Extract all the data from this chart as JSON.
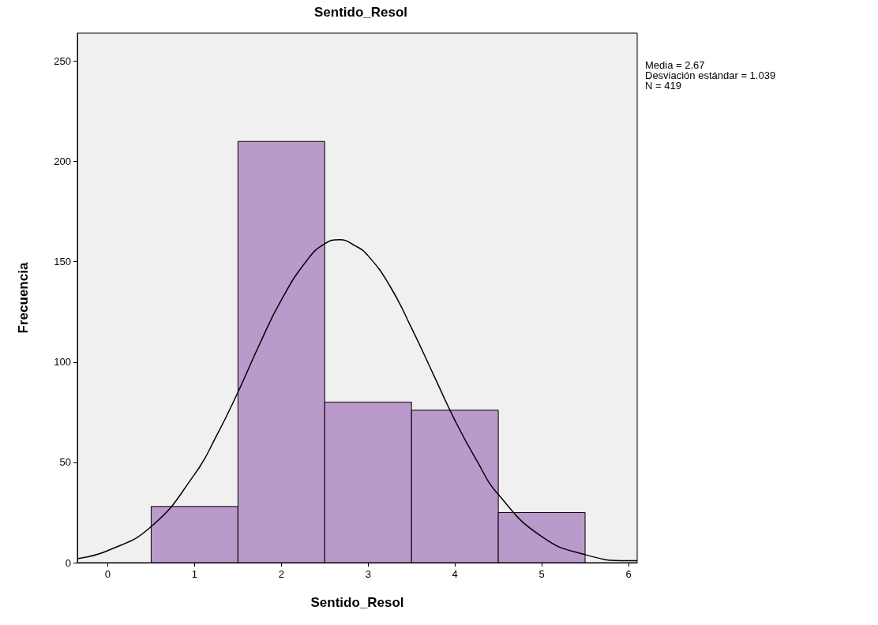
{
  "chart_data": {
    "type": "histogram",
    "title": "Sentido_Resol",
    "xlabel": "Sentido_Resol",
    "ylabel": "Frecuencia",
    "bins": [
      0.5,
      1.5,
      2.5,
      3.5,
      4.5,
      5.5
    ],
    "values": [
      28,
      210,
      80,
      76,
      25
    ],
    "color": "#b99acb",
    "series": [
      {
        "type": "line",
        "color": "#000000",
        "x": [
          -0.35,
          0,
          0.5,
          1,
          1.25,
          1.5,
          1.75,
          2,
          2.3,
          2.5,
          2.67,
          2.85,
          3,
          3.25,
          3.5,
          3.75,
          4,
          4.25,
          4.5,
          5,
          5.5,
          6,
          6.1
        ],
        "values": [
          2,
          6,
          18,
          44,
          63,
          85,
          109,
          131,
          151,
          159,
          161,
          158,
          153,
          138,
          117,
          94,
          71,
          51,
          34,
          13,
          4,
          1,
          1
        ]
      }
    ],
    "xlim": [
      -0.35,
      6.1
    ],
    "xticks": [
      0,
      1,
      2,
      3,
      4,
      5,
      6
    ],
    "ylim": [
      0,
      264
    ],
    "yticks": [
      0,
      50,
      100,
      150,
      200,
      250
    ],
    "grid": false,
    "annotations": [
      "Media = 2.67",
      "Desviación estándar = 1.039",
      "N = 419"
    ]
  }
}
